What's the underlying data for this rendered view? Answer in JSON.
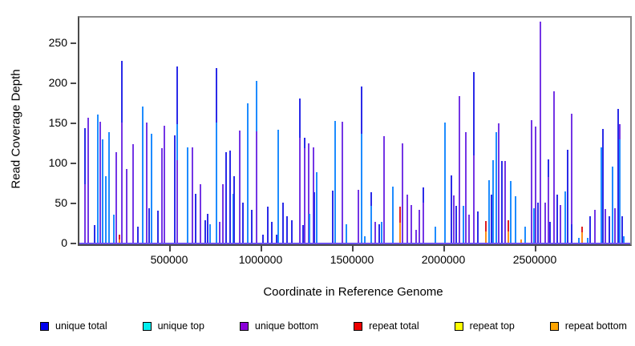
{
  "chart_data": {
    "type": "bar",
    "subtype": "genome-coverage-spike-plot",
    "title": "",
    "xlabel": "Coordinate in Reference Genome",
    "ylabel": "Read Coverage Depth",
    "xlim": [
      0,
      3013000
    ],
    "ylim": [
      0,
      283
    ],
    "x_ticks": [
      500000,
      1000000,
      1500000,
      2000000,
      2500000
    ],
    "y_ticks": [
      0,
      50,
      100,
      150,
      200,
      250
    ],
    "grid": false,
    "legend_position": "bottom",
    "series": [
      {
        "key": "ut",
        "name": "unique total",
        "swatch": "#0000EE",
        "bar": "#2B2BE8"
      },
      {
        "key": "utop",
        "name": "unique top",
        "swatch": "#00EEEE",
        "bar": "#1E8CFF"
      },
      {
        "key": "ub",
        "name": "unique bottom",
        "swatch": "#8B00D9",
        "bar": "#7435E5"
      },
      {
        "key": "rt",
        "name": "repeat total",
        "swatch": "#EE0000",
        "bar": "#E02020"
      },
      {
        "key": "rtop",
        "name": "repeat top",
        "swatch": "#FFFF00",
        "bar": "#F5E000"
      },
      {
        "key": "rb",
        "name": "repeat bottom",
        "swatch": "#FFA500",
        "bar": "#FF9018"
      }
    ],
    "spikes": [
      [
        28500,
        145,
        "ut"
      ],
      [
        28500,
        75,
        "ub"
      ],
      [
        43900,
        158,
        "ub"
      ],
      [
        78900,
        24,
        "ut"
      ],
      [
        94300,
        162,
        "utop"
      ],
      [
        107500,
        153,
        "ub"
      ],
      [
        122800,
        131,
        "utop"
      ],
      [
        142500,
        85,
        "utop"
      ],
      [
        157900,
        140,
        "utop"
      ],
      [
        184200,
        37,
        "utop"
      ],
      [
        197400,
        115,
        "ub"
      ],
      [
        214900,
        12,
        "rt"
      ],
      [
        214900,
        6,
        "rb"
      ],
      [
        225900,
        229,
        "ut"
      ],
      [
        225900,
        152,
        "ub"
      ],
      [
        254400,
        94,
        "ub"
      ],
      [
        289500,
        125,
        "ub"
      ],
      [
        315800,
        22,
        "ut"
      ],
      [
        342100,
        172,
        "utop"
      ],
      [
        364000,
        152,
        "ub"
      ],
      [
        377200,
        45,
        "ut"
      ],
      [
        388200,
        138,
        "utop"
      ],
      [
        425400,
        42,
        "ut"
      ],
      [
        449500,
        120,
        "ub"
      ],
      [
        460500,
        148,
        "ub"
      ],
      [
        517500,
        136,
        "ut"
      ],
      [
        530700,
        222,
        "ut"
      ],
      [
        530700,
        150,
        "utop"
      ],
      [
        532800,
        105,
        "ub"
      ],
      [
        585500,
        121,
        "utop"
      ],
      [
        614000,
        121,
        "ub"
      ],
      [
        629400,
        63,
        "ut"
      ],
      [
        655700,
        75,
        "ub"
      ],
      [
        682000,
        30,
        "ut"
      ],
      [
        695200,
        38,
        "ut"
      ],
      [
        710500,
        25,
        "utop"
      ],
      [
        745600,
        220,
        "ut"
      ],
      [
        745600,
        152,
        "utop"
      ],
      [
        763200,
        28,
        "ub"
      ],
      [
        778500,
        75,
        "ub"
      ],
      [
        798200,
        115,
        "ut"
      ],
      [
        818000,
        117,
        "ut"
      ],
      [
        837700,
        63,
        "utop"
      ],
      [
        841000,
        85,
        "ut"
      ],
      [
        870600,
        142,
        "ub"
      ],
      [
        888200,
        52,
        "ut"
      ],
      [
        914500,
        176,
        "utop"
      ],
      [
        936400,
        43,
        "ut"
      ],
      [
        962700,
        204,
        "utop"
      ],
      [
        965400,
        141,
        "ub"
      ],
      [
        1000000,
        12,
        "ut"
      ],
      [
        1024100,
        47,
        "ut"
      ],
      [
        1046100,
        28,
        "ut"
      ],
      [
        1072400,
        12,
        "ut"
      ],
      [
        1083300,
        143,
        "utop"
      ],
      [
        1107500,
        52,
        "ut"
      ],
      [
        1129400,
        35,
        "ut"
      ],
      [
        1155700,
        30,
        "ut"
      ],
      [
        1199600,
        182,
        "ut"
      ],
      [
        1199600,
        133,
        "ub"
      ],
      [
        1217100,
        24,
        "ut"
      ],
      [
        1225900,
        133,
        "ut"
      ],
      [
        1225900,
        120,
        "ub"
      ],
      [
        1250000,
        126,
        "ub"
      ],
      [
        1253500,
        38,
        "utop"
      ],
      [
        1276300,
        121,
        "ub"
      ],
      [
        1279800,
        65,
        "ut"
      ],
      [
        1293900,
        90,
        "utop"
      ],
      [
        1381600,
        67,
        "ut"
      ],
      [
        1392500,
        154,
        "utop"
      ],
      [
        1434200,
        153,
        "ub"
      ],
      [
        1456100,
        25,
        "utop"
      ],
      [
        1521900,
        68,
        "ub"
      ],
      [
        1537300,
        197,
        "ut"
      ],
      [
        1537300,
        138,
        "utop"
      ],
      [
        1557000,
        10,
        "utop"
      ],
      [
        1592100,
        65,
        "ut"
      ],
      [
        1592100,
        48,
        "utop"
      ],
      [
        1614000,
        28,
        "ub"
      ],
      [
        1636000,
        25,
        "ut"
      ],
      [
        1649000,
        28,
        "utop"
      ],
      [
        1660100,
        135,
        "ub"
      ],
      [
        1710500,
        72,
        "utop"
      ],
      [
        1750000,
        47,
        "rt"
      ],
      [
        1750000,
        27,
        "rb"
      ],
      [
        1763200,
        126,
        "ub"
      ],
      [
        1789500,
        62,
        "ub"
      ],
      [
        1811400,
        49,
        "ub"
      ],
      [
        1837700,
        18,
        "ub"
      ],
      [
        1855300,
        43,
        "ub"
      ],
      [
        1877200,
        71,
        "ut"
      ],
      [
        1877200,
        52,
        "ub"
      ],
      [
        1943000,
        22,
        "utop"
      ],
      [
        1995600,
        152,
        "utop"
      ],
      [
        2030700,
        86,
        "ut"
      ],
      [
        2041700,
        61,
        "ub"
      ],
      [
        2054800,
        48,
        "ut"
      ],
      [
        2074600,
        185,
        "ub"
      ],
      [
        2096500,
        48,
        "utop"
      ],
      [
        2107500,
        140,
        "ub"
      ],
      [
        2127200,
        37,
        "ub"
      ],
      [
        2153500,
        215,
        "ut"
      ],
      [
        2153500,
        111,
        "ub"
      ],
      [
        2175400,
        41,
        "ut"
      ],
      [
        2219300,
        29,
        "rt"
      ],
      [
        2219300,
        16,
        "rb"
      ],
      [
        2236800,
        80,
        "utop"
      ],
      [
        2247800,
        62,
        "ut"
      ],
      [
        2258800,
        105,
        "utop"
      ],
      [
        2274100,
        140,
        "utop"
      ],
      [
        2289500,
        151,
        "ub"
      ],
      [
        2307000,
        104,
        "ut"
      ],
      [
        2322400,
        104,
        "ub"
      ],
      [
        2342100,
        30,
        "rt"
      ],
      [
        2342100,
        16,
        "rb"
      ],
      [
        2355300,
        79,
        "utop"
      ],
      [
        2381600,
        60,
        "utop"
      ],
      [
        2412300,
        6,
        "rb"
      ],
      [
        2434200,
        22,
        "utop"
      ],
      [
        2469300,
        155,
        "ub"
      ],
      [
        2480300,
        45,
        "utop"
      ],
      [
        2489000,
        147,
        "ub"
      ],
      [
        2502200,
        52,
        "ut"
      ],
      [
        2515400,
        278,
        "ub"
      ],
      [
        2543900,
        52,
        "ub"
      ],
      [
        2559200,
        106,
        "ut"
      ],
      [
        2559200,
        84,
        "ub"
      ],
      [
        2570200,
        28,
        "ut"
      ],
      [
        2589900,
        191,
        "ub"
      ],
      [
        2607500,
        60,
        "ub"
      ],
      [
        2611000,
        62,
        "ut"
      ],
      [
        2627200,
        49,
        "ub"
      ],
      [
        2653500,
        66,
        "utop"
      ],
      [
        2664500,
        118,
        "ut"
      ],
      [
        2686400,
        163,
        "ub"
      ],
      [
        2686400,
        25,
        "ut"
      ],
      [
        2728100,
        8,
        "utop"
      ],
      [
        2745600,
        22,
        "rt"
      ],
      [
        2745600,
        15,
        "rb"
      ],
      [
        2776300,
        8,
        "utop"
      ],
      [
        2787300,
        35,
        "ut"
      ],
      [
        2815800,
        43,
        "ub"
      ],
      [
        2850900,
        121,
        "utop"
      ],
      [
        2857400,
        144,
        "ut"
      ],
      [
        2872800,
        44,
        "ub"
      ],
      [
        2894700,
        35,
        "ut"
      ],
      [
        2912300,
        97,
        "utop"
      ],
      [
        2923200,
        45,
        "ub"
      ],
      [
        2940800,
        169,
        "ut"
      ],
      [
        2949600,
        150,
        "ub"
      ],
      [
        2952600,
        131,
        "utop"
      ],
      [
        2962700,
        35,
        "ut"
      ],
      [
        2973700,
        10,
        "utop"
      ]
    ]
  }
}
